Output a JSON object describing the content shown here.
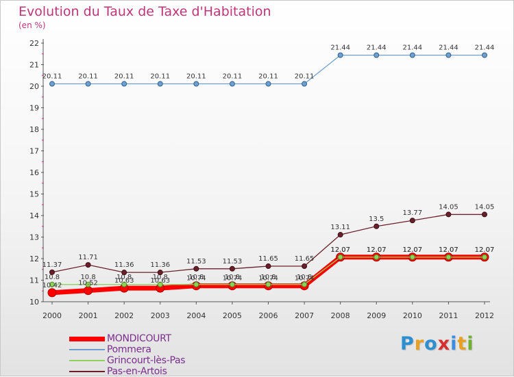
{
  "header": {
    "title": "Evolution du Taux de Taxe d'Habitation",
    "unit": "(en %)"
  },
  "brand": {
    "text": "Proxiti",
    "letters": [
      "P",
      "r",
      "o",
      "x",
      "i",
      "t",
      "i"
    ],
    "letter_colors": [
      "#2e8fd0",
      "#e8a020",
      "#2e8fd0",
      "#d53030",
      "#3a8de0",
      "#e8a020",
      "#70b030"
    ]
  },
  "chart_data": {
    "type": "line",
    "title": "Evolution du Taux de Taxe d'Habitation",
    "ylabel": "(en %)",
    "xlabel": "",
    "x": [
      "2000",
      "2001",
      "2002",
      "2003",
      "2004",
      "2005",
      "2006",
      "2007",
      "2008",
      "2009",
      "2010",
      "2011",
      "2012"
    ],
    "ylim": [
      10,
      22
    ],
    "yticks": [
      "10",
      "11",
      "12",
      "13",
      "14",
      "15",
      "16",
      "17",
      "18",
      "19",
      "20",
      "21",
      "22"
    ],
    "grid": false,
    "legend_position": "bottom-left",
    "series": [
      {
        "name": "MONDICOURT",
        "color": "#ff0000",
        "values": [
          10.42,
          10.52,
          10.63,
          10.63,
          10.74,
          10.74,
          10.74,
          10.74,
          12.07,
          12.07,
          12.07,
          12.07,
          12.07
        ],
        "labels": [
          "10.42",
          "10.52",
          "10.63",
          "10.63",
          "10.74",
          "10.74",
          "10.74",
          "10.74",
          "12.07",
          "12.07",
          "12.07",
          "12.07",
          "12.07"
        ]
      },
      {
        "name": "Pommera",
        "color": "#6fa0cd",
        "values": [
          20.11,
          20.11,
          20.11,
          20.11,
          20.11,
          20.11,
          20.11,
          20.11,
          21.44,
          21.44,
          21.44,
          21.44,
          21.44
        ],
        "labels": [
          "20.11",
          "20.11",
          "20.11",
          "20.11",
          "20.11",
          "20.11",
          "20.11",
          "20.11",
          "21.44",
          "21.44",
          "21.44",
          "21.44",
          "21.44"
        ]
      },
      {
        "name": "Grincourt-lès-Pas",
        "color": "#8ed25a",
        "values": [
          10.8,
          10.8,
          10.8,
          10.8,
          10.8,
          10.8,
          10.8,
          10.8,
          12.07,
          12.07,
          12.07,
          12.07,
          12.07
        ],
        "labels": [
          "10.8",
          "10.8",
          "10.8",
          "10.8",
          "10.8",
          "10.8",
          "10.8",
          "10.8",
          "12.07",
          "12.07",
          "12.07",
          "12.07",
          "12.07"
        ]
      },
      {
        "name": "Pas-en-Artois",
        "color": "#6b1f2a",
        "values": [
          11.37,
          11.71,
          11.36,
          11.36,
          11.53,
          11.53,
          11.65,
          11.65,
          13.11,
          13.5,
          13.77,
          14.05,
          14.05
        ],
        "labels": [
          "11.37",
          "11.71",
          "11.36",
          "11.36",
          "11.53",
          "11.53",
          "11.65",
          "11.65",
          "13.11",
          "13.5",
          "13.77",
          "14.05",
          "14.05"
        ]
      }
    ]
  }
}
